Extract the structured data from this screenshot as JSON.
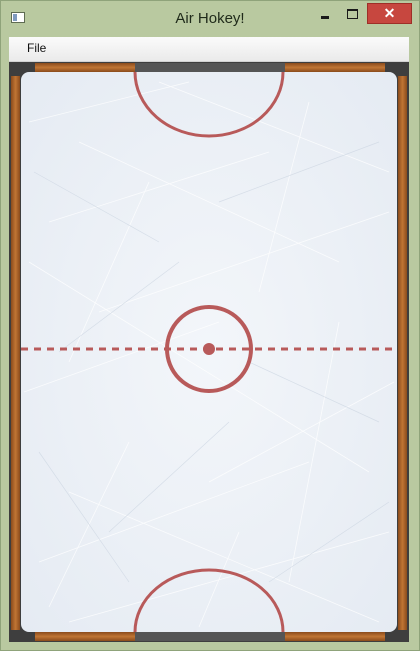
{
  "window": {
    "title": "Air Hokey!",
    "controls": {
      "minimize_icon": "minimize-icon",
      "maximize_icon": "maximize-icon",
      "close_glyph": "✕"
    }
  },
  "menubar": {
    "items": [
      {
        "label": "File"
      }
    ]
  },
  "rink": {
    "ice_color": "#eef2f7",
    "line_color": "#b85a5a",
    "wood_color": "#b56a2c",
    "bumper_color": "#4b4b4b",
    "center_line_style": "dashed",
    "goals": [
      "top",
      "bottom"
    ],
    "center_circle_with_dot": true
  }
}
